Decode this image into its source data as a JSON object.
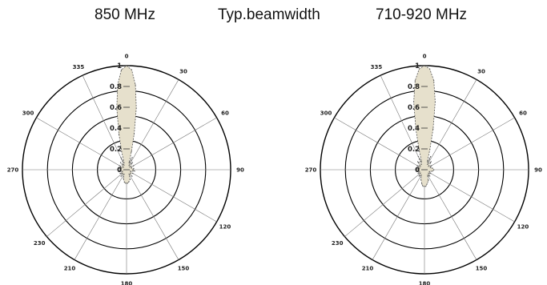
{
  "header": {
    "left_title": "850 MHz",
    "center_title": "Typ.beamwidth",
    "right_title": "710-920 MHz"
  },
  "chart_data": [
    {
      "type": "polar",
      "title": "850 MHz",
      "angle_ticks": [
        0,
        30,
        60,
        90,
        120,
        150,
        180,
        210,
        230,
        270,
        300,
        335
      ],
      "radial_ticks": [
        0,
        0.2,
        0.4,
        0.6,
        0.8,
        1
      ],
      "rlim": [
        0,
        1
      ],
      "grid": true,
      "fill_color": "#e6e0cc",
      "series": [
        {
          "angles": [
            0,
            3,
            6,
            9,
            12,
            15,
            20,
            25,
            30,
            40,
            50,
            60,
            70,
            80,
            90,
            100,
            110,
            120,
            130,
            140,
            150,
            160,
            170,
            175,
            180,
            185,
            190,
            200,
            210,
            220,
            230,
            240,
            250,
            260,
            270,
            280,
            290,
            300,
            310,
            320,
            330,
            335,
            340,
            345,
            348,
            351,
            354,
            357
          ],
          "values": [
            1.0,
            0.96,
            0.82,
            0.6,
            0.35,
            0.18,
            0.07,
            0.13,
            0.05,
            0.09,
            0.04,
            0.08,
            0.05,
            0.07,
            0.06,
            0.08,
            0.04,
            0.07,
            0.05,
            0.08,
            0.05,
            0.1,
            0.12,
            0.13,
            0.13,
            0.13,
            0.12,
            0.09,
            0.05,
            0.08,
            0.05,
            0.07,
            0.04,
            0.07,
            0.06,
            0.07,
            0.05,
            0.08,
            0.04,
            0.09,
            0.05,
            0.13,
            0.07,
            0.18,
            0.35,
            0.6,
            0.82,
            0.96
          ]
        }
      ]
    },
    {
      "type": "polar",
      "title": "710-920 MHz",
      "angle_ticks": [
        0,
        30,
        60,
        90,
        120,
        150,
        180,
        210,
        230,
        270,
        300,
        335
      ],
      "radial_ticks": [
        0,
        0.2,
        0.4,
        0.6,
        0.8,
        1
      ],
      "rlim": [
        0,
        1
      ],
      "grid": true,
      "fill_color": "#e6e0cc",
      "series": [
        {
          "angles": [
            0,
            3,
            6,
            9,
            12,
            15,
            20,
            25,
            30,
            40,
            50,
            60,
            70,
            80,
            90,
            100,
            110,
            120,
            130,
            140,
            150,
            160,
            170,
            175,
            180,
            185,
            190,
            200,
            210,
            220,
            230,
            240,
            250,
            260,
            270,
            280,
            290,
            300,
            310,
            320,
            330,
            335,
            340,
            345,
            348,
            351,
            354,
            357
          ],
          "values": [
            1.0,
            0.97,
            0.86,
            0.66,
            0.4,
            0.2,
            0.08,
            0.14,
            0.06,
            0.1,
            0.05,
            0.08,
            0.06,
            0.08,
            0.09,
            0.08,
            0.05,
            0.07,
            0.05,
            0.08,
            0.06,
            0.11,
            0.14,
            0.16,
            0.16,
            0.16,
            0.14,
            0.1,
            0.06,
            0.08,
            0.05,
            0.07,
            0.05,
            0.07,
            0.07,
            0.07,
            0.05,
            0.08,
            0.05,
            0.1,
            0.06,
            0.14,
            0.08,
            0.2,
            0.4,
            0.66,
            0.86,
            0.97
          ]
        }
      ]
    }
  ]
}
